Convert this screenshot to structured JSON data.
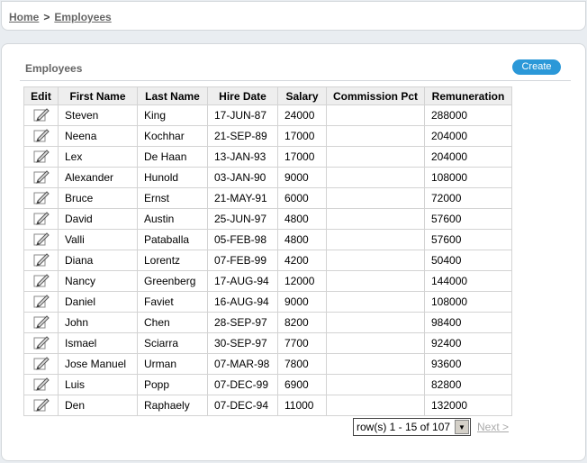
{
  "breadcrumb": {
    "home": "Home",
    "separator": ">",
    "current": "Employees"
  },
  "region": {
    "title": "Employees",
    "create_label": "Create"
  },
  "table": {
    "columns": [
      "Edit",
      "First Name",
      "Last Name",
      "Hire Date",
      "Salary",
      "Commission Pct",
      "Remuneration"
    ],
    "rows": [
      [
        "Steven",
        "King",
        "17-JUN-87",
        "24000",
        "",
        "288000"
      ],
      [
        "Neena",
        "Kochhar",
        "21-SEP-89",
        "17000",
        "",
        "204000"
      ],
      [
        "Lex",
        "De Haan",
        "13-JAN-93",
        "17000",
        "",
        "204000"
      ],
      [
        "Alexander",
        "Hunold",
        "03-JAN-90",
        "9000",
        "",
        "108000"
      ],
      [
        "Bruce",
        "Ernst",
        "21-MAY-91",
        "6000",
        "",
        "72000"
      ],
      [
        "David",
        "Austin",
        "25-JUN-97",
        "4800",
        "",
        "57600"
      ],
      [
        "Valli",
        "Pataballa",
        "05-FEB-98",
        "4800",
        "",
        "57600"
      ],
      [
        "Diana",
        "Lorentz",
        "07-FEB-99",
        "4200",
        "",
        "50400"
      ],
      [
        "Nancy",
        "Greenberg",
        "17-AUG-94",
        "12000",
        "",
        "144000"
      ],
      [
        "Daniel",
        "Faviet",
        "16-AUG-94",
        "9000",
        "",
        "108000"
      ],
      [
        "John",
        "Chen",
        "28-SEP-97",
        "8200",
        "",
        "98400"
      ],
      [
        "Ismael",
        "Sciarra",
        "30-SEP-97",
        "7700",
        "",
        "92400"
      ],
      [
        "Jose Manuel",
        "Urman",
        "07-MAR-98",
        "7800",
        "",
        "93600"
      ],
      [
        "Luis",
        "Popp",
        "07-DEC-99",
        "6900",
        "",
        "82800"
      ],
      [
        "Den",
        "Raphaely",
        "07-DEC-94",
        "11000",
        "",
        "132000"
      ]
    ]
  },
  "pagination": {
    "range": "row(s) 1 - 15 of 107",
    "next": "Next >"
  },
  "colors": {
    "accent": "#2b98d8",
    "background": "#e9edf1"
  }
}
